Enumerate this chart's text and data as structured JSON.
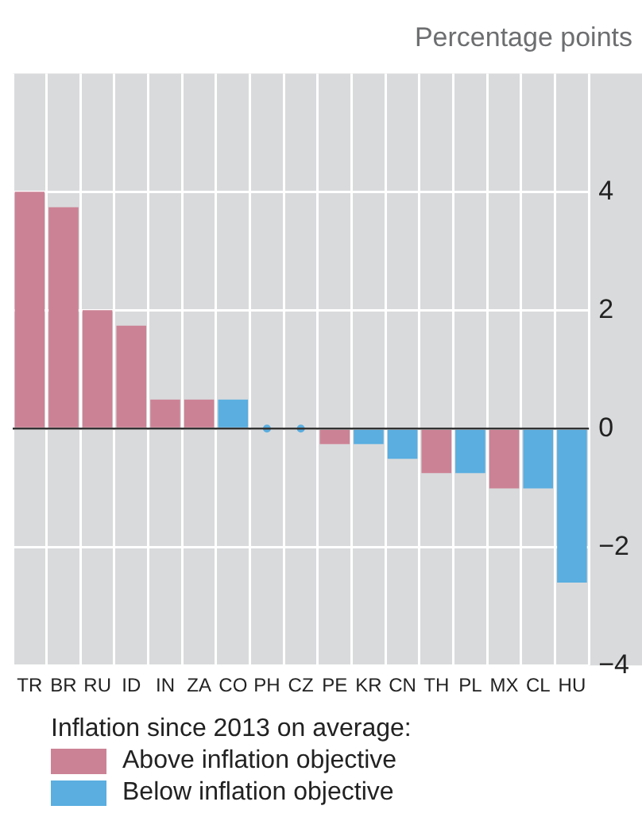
{
  "chart_data": {
    "type": "bar",
    "ylabel": "Percentage points",
    "legend_title": "Inflation since 2013 on average:",
    "categories": [
      "TR",
      "BR",
      "RU",
      "ID",
      "IN",
      "ZA",
      "CO",
      "PH",
      "CZ",
      "PE",
      "KR",
      "CN",
      "TH",
      "PL",
      "MX",
      "CL",
      "HU"
    ],
    "stacked": true,
    "series": [
      {
        "name": "Above inflation objective",
        "color": "#cc8295",
        "values": [
          4.0,
          3.74,
          2.0,
          1.74,
          0.49,
          0.49,
          null,
          null,
          null,
          -0.26,
          null,
          null,
          -0.75,
          null,
          -1.01,
          null,
          null
        ]
      },
      {
        "name": "Below inflation objective",
        "color": "#5aaee0",
        "values": [
          null,
          null,
          null,
          null,
          null,
          null,
          0.49,
          null,
          null,
          null,
          -0.26,
          -0.51,
          null,
          -0.75,
          null,
          -1.01,
          -2.6
        ]
      },
      {
        "type": "scatter",
        "color": "#5aaee0",
        "x": [
          "PH",
          "CZ"
        ],
        "values": [
          0,
          0
        ],
        "marker": "circle"
      }
    ],
    "ylim": [
      -4,
      6
    ],
    "yticks": [
      -4,
      -2,
      0,
      2,
      4
    ],
    "grid": true,
    "legend": "bottom"
  }
}
